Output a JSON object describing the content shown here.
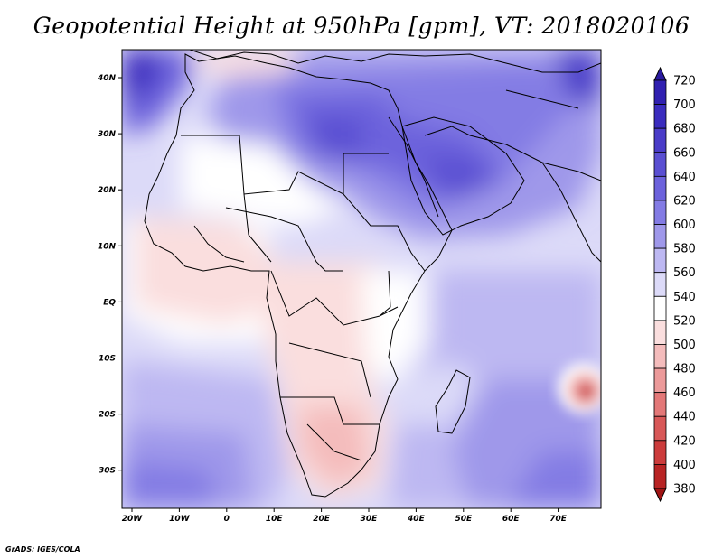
{
  "title": "Geopotential Height at 950hPa [gpm], VT: 2018020106",
  "credit": "GrADS: IGES/COLA",
  "map": {
    "lon_labels": [
      "20W",
      "10W",
      "0",
      "10E",
      "20E",
      "30E",
      "40E",
      "50E",
      "60E",
      "70E"
    ],
    "lat_labels": [
      "40N",
      "30N",
      "20N",
      "10N",
      "EQ",
      "10S",
      "20S",
      "30S"
    ],
    "colorbar_levels": [
      "720",
      "700",
      "680",
      "660",
      "640",
      "620",
      "600",
      "580",
      "560",
      "540",
      "520",
      "500",
      "480",
      "460",
      "440",
      "420",
      "400",
      "380"
    ],
    "colorbar_colors": [
      "#2a1aa0",
      "#3020b0",
      "#3a2cbe",
      "#4a3cc8",
      "#5a4fd2",
      "#6c62dc",
      "#837be4",
      "#9f98ea",
      "#bdb8f2",
      "#dcdaf8",
      "#ffffff",
      "#fadede",
      "#f4bcbc",
      "#ec9a9a",
      "#e37878",
      "#d85858",
      "#cc3c3c",
      "#b82424",
      "#a01414"
    ]
  }
}
